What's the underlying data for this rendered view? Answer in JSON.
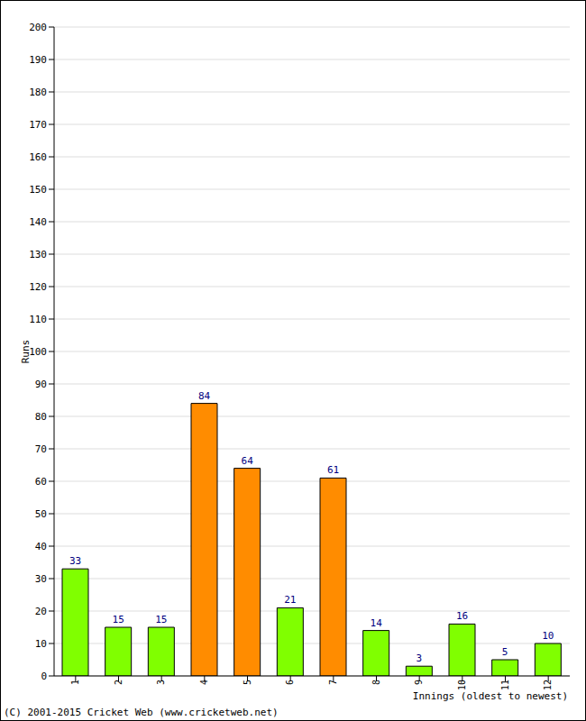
{
  "chart_data": {
    "type": "bar",
    "x_label": "Innings (oldest to newest)",
    "y_label": "Runs",
    "categories": [
      "1",
      "2",
      "3",
      "4",
      "5",
      "6",
      "7",
      "8",
      "9",
      "10",
      "11",
      "12"
    ],
    "values": [
      33,
      15,
      15,
      84,
      64,
      21,
      61,
      14,
      3,
      16,
      5,
      10
    ],
    "colors": [
      "#80ff00",
      "#80ff00",
      "#80ff00",
      "#ff8c00",
      "#ff8c00",
      "#80ff00",
      "#ff8c00",
      "#80ff00",
      "#80ff00",
      "#80ff00",
      "#80ff00",
      "#80ff00"
    ],
    "ylim": [
      0,
      200
    ],
    "yticks": [
      0,
      10,
      20,
      30,
      40,
      50,
      60,
      70,
      80,
      90,
      100,
      110,
      120,
      130,
      140,
      150,
      160,
      170,
      180,
      190,
      200
    ],
    "grid": true,
    "data_labels": true,
    "annotations": [
      "(C) 2001-2015 Cricket Web (www.cricketweb.net)"
    ]
  }
}
